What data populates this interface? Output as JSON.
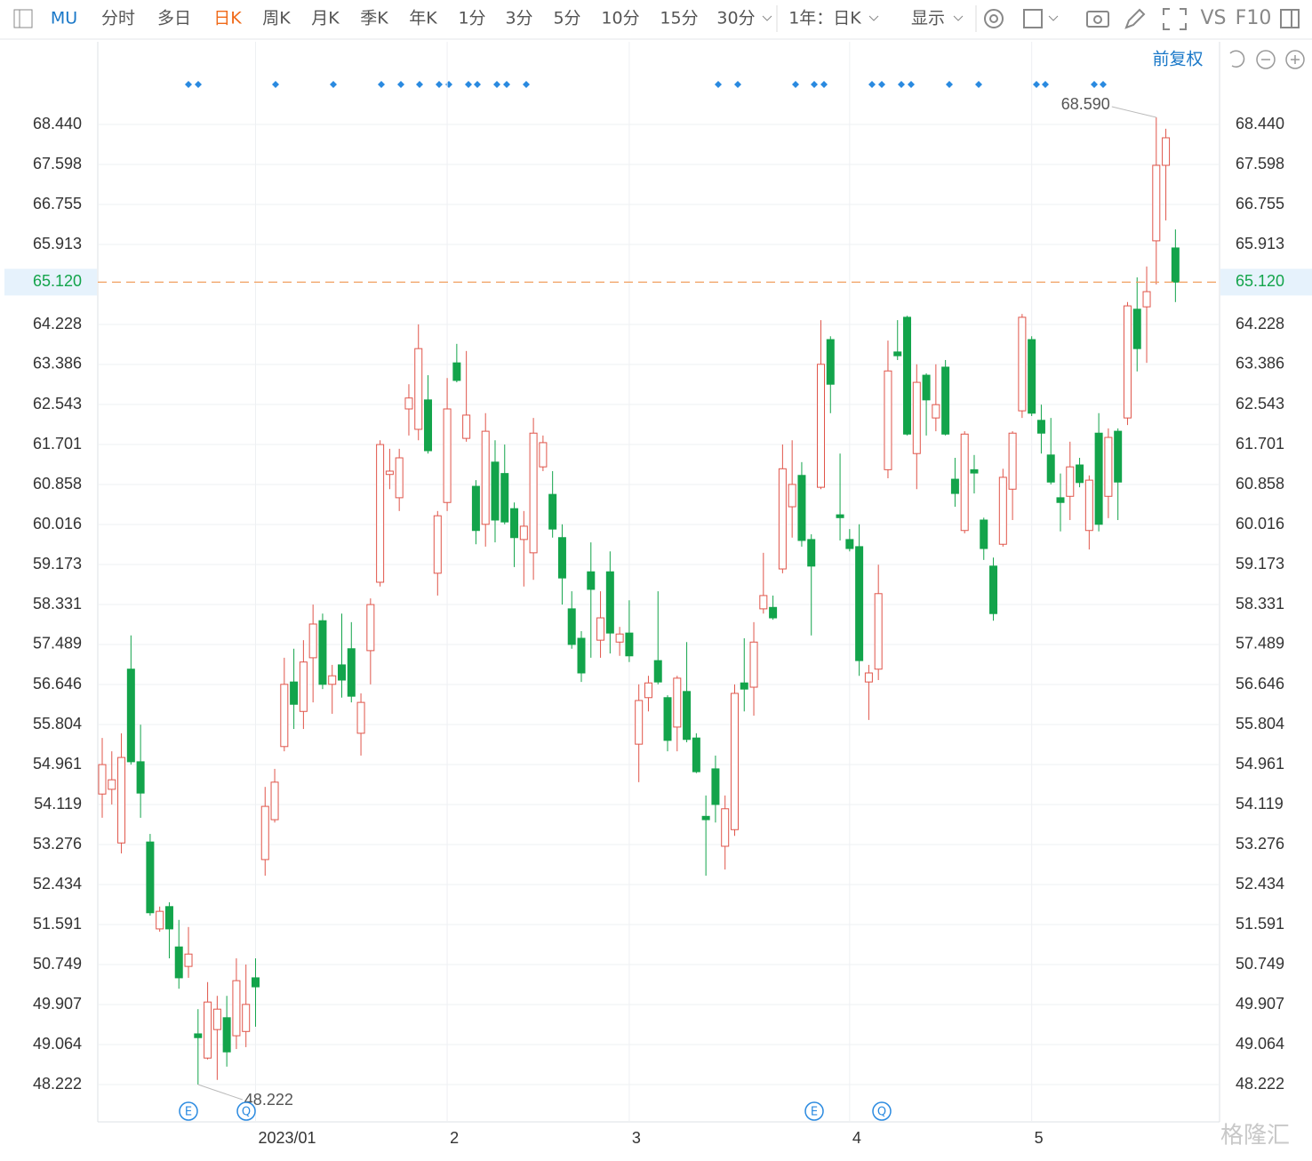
{
  "toolbar": {
    "symbol": "MU",
    "periods": [
      "分时",
      "多日",
      "日K",
      "周K",
      "月K",
      "季K",
      "年K",
      "1分",
      "3分",
      "5分",
      "10分",
      "15分",
      "30分"
    ],
    "active_period_index": 2,
    "range": "1年：日K",
    "display": "显示",
    "vs": "VS",
    "f10": "F10"
  },
  "adjustment": "前复权",
  "watermark": "格隆汇",
  "chart_data": {
    "type": "candlestick",
    "categories": [
      null,
      null,
      null,
      null,
      null,
      null,
      null,
      null,
      null,
      null,
      null,
      null,
      null,
      null,
      null,
      null,
      "2023/01",
      null,
      null,
      null,
      null,
      null,
      null,
      null,
      null,
      null,
      null,
      null,
      null,
      null,
      null,
      null,
      null,
      null,
      null,
      null,
      "2",
      null,
      null,
      null,
      null,
      null,
      null,
      null,
      null,
      null,
      null,
      null,
      null,
      null,
      null,
      null,
      null,
      null,
      null,
      "3",
      null,
      null,
      null,
      null,
      null,
      null,
      null,
      null,
      null,
      null,
      null,
      null,
      null,
      null,
      null,
      null,
      null,
      null,
      null,
      null,
      null,
      null,
      "4",
      null,
      null,
      null,
      null,
      null,
      null,
      null,
      null,
      null,
      null,
      null,
      null,
      null,
      null,
      null,
      null,
      null,
      null,
      "5",
      null,
      null,
      null,
      null,
      null,
      null,
      null,
      null,
      null,
      null,
      null,
      null,
      null,
      null,
      null
    ],
    "open": [
      54.34,
      54.44,
      53.31,
      56.97,
      55.02,
      53.33,
      51.5,
      51.97,
      51.12,
      50.71,
      49.29,
      48.78,
      49.38,
      49.63,
      49.25,
      49.34,
      50.47,
      52.96,
      53.8,
      55.34,
      56.7,
      56.08,
      57.21,
      57.99,
      56.65,
      57.06,
      57.4,
      55.62,
      57.36,
      58.8,
      61.07,
      60.58,
      62.45,
      62.02,
      62.64,
      58.99,
      60.48,
      63.42,
      61.83,
      60.82,
      60.02,
      61.33,
      61.09,
      60.35,
      59.7,
      59.42,
      61.23,
      60.65,
      59.74,
      58.24,
      57.62,
      59.02,
      57.58,
      59.02,
      57.54,
      57.73,
      55.39,
      56.37,
      57.15,
      56.37,
      55.75,
      56.5,
      55.52,
      53.87,
      54.87,
      53.24,
      53.59,
      56.68,
      56.59,
      58.24,
      58.27,
      59.08,
      60.39,
      61.05,
      59.7,
      60.8,
      63.91,
      60.22,
      59.7,
      59.55,
      56.7,
      56.97,
      61.17,
      63.65,
      64.38,
      61.51,
      63.16,
      62.26,
      63.33,
      60.97,
      59.89,
      61.17,
      60.11,
      59.14,
      59.6,
      60.76,
      62.41,
      63.91,
      62.21,
      61.48,
      60.58,
      60.61,
      61.27,
      59.89,
      61.94,
      60.61,
      61.98,
      62.26,
      64.55,
      64.6,
      65.99,
      67.58,
      65.84
    ],
    "high": [
      55.52,
      55.24,
      55.62,
      57.68,
      55.8,
      53.5,
      51.97,
      52.06,
      51.69,
      51.54,
      49.81,
      50.38,
      50.09,
      50.09,
      50.88,
      50.75,
      50.88,
      54.49,
      54.87,
      57.21,
      57.4,
      57.58,
      58.33,
      58.14,
      57.06,
      58.14,
      57.96,
      56.46,
      58.46,
      61.79,
      61.61,
      61.61,
      62.97,
      64.23,
      63.16,
      60.3,
      63.1,
      63.82,
      63.67,
      60.95,
      62.36,
      61.79,
      61.7,
      60.48,
      60.3,
      62.26,
      61.89,
      61.14,
      60.02,
      58.61,
      57.77,
      59.64,
      58.61,
      59.45,
      57.86,
      58.42,
      56.65,
      56.83,
      58.61,
      56.42,
      56.83,
      57.54,
      55.62,
      54.31,
      55.15,
      54.31,
      56.65,
      57.62,
      57.96,
      59.42,
      58.52,
      61.7,
      61.79,
      61.33,
      59.81,
      64.32,
      63.98,
      61.51,
      59.92,
      60.02,
      57.06,
      59.17,
      63.89,
      64.32,
      64.41,
      63.39,
      63.2,
      63.39,
      63.48,
      61.42,
      61.98,
      61.48,
      60.16,
      59.32,
      61.19,
      61.98,
      64.45,
      63.98,
      62.54,
      62.26,
      61.09,
      61.76,
      61.42,
      61.05,
      62.36,
      62.04,
      62.04,
      64.7,
      65.22,
      65.45,
      68.59,
      68.35,
      66.23
    ],
    "low": [
      53.84,
      54.12,
      53.09,
      54.96,
      53.84,
      51.78,
      51.44,
      50.88,
      50.24,
      50.47,
      48.222,
      48.75,
      48.32,
      48.6,
      48.97,
      49.01,
      49.44,
      52.62,
      53.74,
      55.24,
      55.71,
      55.71,
      56.27,
      56.55,
      56.03,
      56.37,
      56.27,
      55.15,
      56.65,
      58.71,
      60.76,
      60.3,
      61.89,
      61.79,
      61.51,
      58.52,
      60.3,
      63.01,
      61.76,
      59.6,
      59.55,
      59.64,
      60.02,
      59.12,
      58.71,
      58.85,
      61.14,
      59.74,
      58.33,
      57.4,
      56.7,
      57.21,
      57.21,
      57.3,
      57.25,
      57.12,
      54.59,
      56.08,
      56.65,
      55.24,
      55.24,
      55.43,
      54.78,
      52.62,
      53.74,
      52.75,
      53.46,
      56.08,
      55.99,
      58.14,
      58.01,
      58.99,
      59.74,
      59.55,
      57.68,
      60.76,
      62.36,
      59.68,
      59.45,
      56.83,
      55.9,
      56.74,
      60.99,
      63.48,
      61.89,
      60.76,
      61.89,
      61.98,
      61.89,
      60.39,
      59.83,
      60.67,
      59.27,
      57.99,
      59.55,
      60.11,
      62.26,
      62.3,
      61.51,
      60.86,
      59.87,
      60.11,
      60.8,
      59.49,
      59.87,
      60.15,
      60.11,
      62.11,
      63.24,
      63.42,
      65.07,
      66.42,
      64.7
    ],
    "close": [
      54.96,
      54.64,
      55.11,
      55.02,
      54.36,
      51.84,
      51.87,
      51.5,
      50.47,
      50.97,
      49.21,
      49.96,
      49.81,
      48.91,
      50.41,
      49.91,
      50.28,
      54.08,
      54.59,
      56.65,
      56.23,
      57.12,
      57.92,
      56.65,
      56.83,
      56.74,
      56.4,
      56.27,
      58.33,
      61.7,
      61.14,
      61.42,
      62.68,
      63.72,
      61.57,
      60.2,
      62.45,
      63.05,
      62.32,
      59.89,
      61.98,
      60.11,
      60.07,
      59.74,
      59.98,
      61.94,
      61.74,
      59.92,
      58.89,
      57.49,
      56.89,
      58.65,
      58.05,
      57.73,
      57.71,
      57.25,
      56.31,
      56.68,
      56.7,
      55.47,
      56.78,
      55.49,
      54.81,
      53.8,
      54.12,
      54.03,
      56.46,
      56.55,
      57.54,
      58.52,
      58.05,
      61.19,
      60.86,
      59.68,
      59.14,
      63.39,
      62.97,
      60.16,
      59.51,
      57.15,
      56.89,
      58.56,
      63.25,
      63.57,
      61.92,
      63.01,
      62.64,
      62.54,
      61.92,
      60.67,
      61.92,
      61.1,
      59.51,
      58.14,
      61.01,
      61.94,
      64.38,
      62.36,
      61.94,
      60.91,
      60.48,
      61.23,
      60.9,
      60.95,
      60.02,
      61.85,
      60.91,
      64.62,
      63.72,
      64.92,
      67.58,
      68.16,
      65.12
    ],
    "up_color": "#e0554a",
    "down_color": "#13a44b",
    "price_line_color": "#f0a060",
    "ylim": [
      47.436,
      69.414
    ],
    "yticks": [
      {
        "value": 68.44,
        "label": "68.440"
      },
      67.598,
      66.755,
      65.913,
      64.228,
      63.386,
      62.543,
      61.701,
      60.858,
      60.016,
      59.173,
      58.331,
      57.489,
      56.646,
      55.804,
      54.961,
      54.119,
      53.276,
      52.434,
      51.591,
      50.749,
      49.907,
      49.064,
      48.222
    ],
    "grid": true,
    "last_price": {
      "value": 65.12,
      "label": "65.120"
    },
    "max_label": {
      "value": 68.59,
      "label": "68.590"
    },
    "min_label": 48.222,
    "event_icons": [
      "E",
      "Q",
      "E",
      "Q"
    ]
  }
}
